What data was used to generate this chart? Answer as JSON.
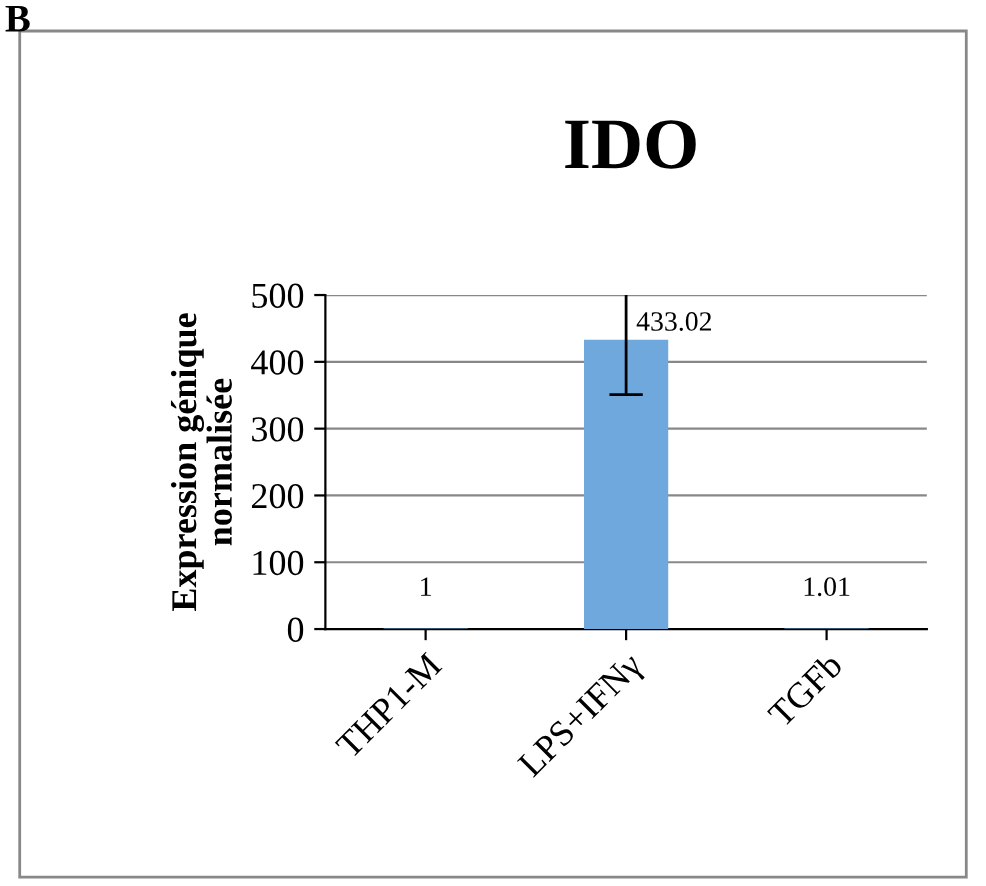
{
  "chart_data": {
    "type": "bar",
    "title": "IDO",
    "ylabel": "Expression génique\nnormalisée",
    "categories": [
      "THP1-M",
      "LPS+IFNγ",
      "TGFb"
    ],
    "values": [
      1,
      433.02,
      1.01
    ],
    "value_labels": [
      "1",
      "433.02",
      "1.01"
    ],
    "errors": [
      null,
      82,
      null
    ],
    "color": "#6fa8dc",
    "ylim": [
      0,
      500
    ],
    "yticks": [
      0,
      100,
      200,
      300,
      400,
      500
    ],
    "grid": "y",
    "annotations": [
      "B"
    ]
  }
}
